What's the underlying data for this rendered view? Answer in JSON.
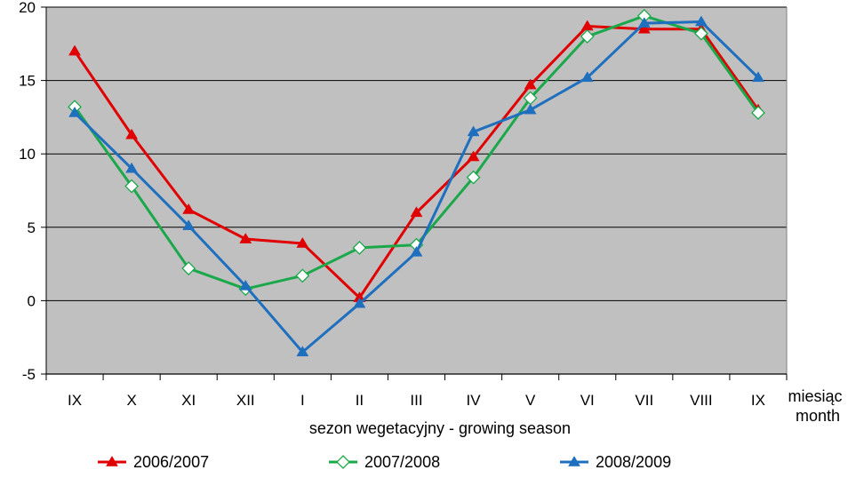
{
  "chart_data": {
    "type": "line",
    "categories": [
      "IX",
      "X",
      "XI",
      "XII",
      "I",
      "II",
      "III",
      "IV",
      "V",
      "VI",
      "VII",
      "VIII",
      "IX"
    ],
    "xlabel": "sezon wegetacyjny - growing season",
    "xlabel_unit_line1": "miesiąc",
    "xlabel_unit_line2": "month",
    "ylabel": "",
    "ylim": [
      -5,
      20
    ],
    "yticks": [
      -5,
      0,
      5,
      10,
      15,
      20
    ],
    "grid": true,
    "legend_position": "bottom",
    "series": [
      {
        "name": "2006/2007",
        "color": "#e00000",
        "marker": "filled-triangle",
        "values": [
          17.0,
          11.3,
          6.2,
          4.2,
          3.9,
          0.2,
          6.0,
          9.8,
          14.7,
          18.7,
          18.5,
          18.5,
          13.0
        ]
      },
      {
        "name": "2007/2008",
        "color": "#1aa84a",
        "marker": "open-diamond",
        "values": [
          13.2,
          7.8,
          2.2,
          0.8,
          1.7,
          3.6,
          3.8,
          8.4,
          13.8,
          18.0,
          19.4,
          18.2,
          12.8
        ]
      },
      {
        "name": "2008/2009",
        "color": "#1f6fbf",
        "marker": "filled-triangle",
        "values": [
          12.8,
          9.0,
          5.1,
          1.0,
          -3.5,
          -0.2,
          3.3,
          11.5,
          13.0,
          15.2,
          18.9,
          19.0,
          15.2
        ]
      }
    ]
  }
}
